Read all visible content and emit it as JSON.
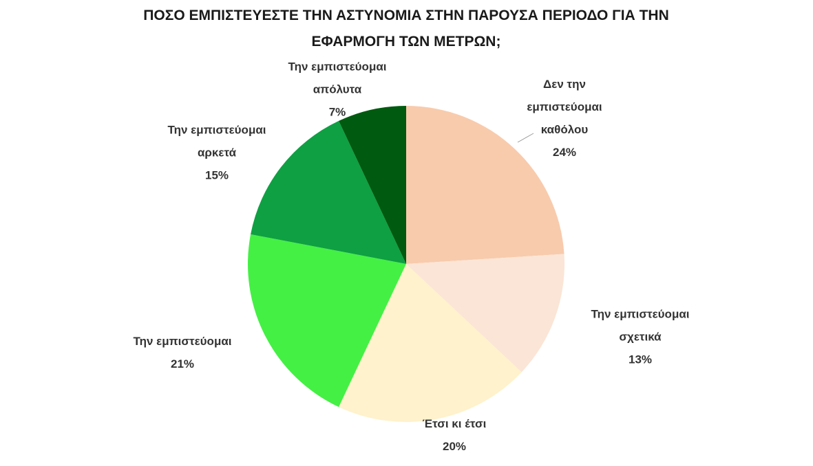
{
  "chart_data": {
    "type": "pie",
    "title": "ΠΟΣΟ ΕΜΠΙΣΤΕΥΕΣΤΕ ΤΗΝ ΑΣΤΥΝΟΜΙΑ ΣΤΗΝ ΠΑΡΟΥΣΑ ΠΕΡΙΟΔΟ ΓΙΑ ΤΗΝ ΕΦΑΡΜΟΓΗ ΤΩΝ ΜΕΤΡΩΝ;",
    "categories": [
      "Δεν την εμπιστεύομαι καθόλου",
      "Την εμπιστεύομαι σχετικά",
      "Έτσι κι έτσι",
      "Την εμπιστεύομαι",
      "Την εμπιστεύομαι αρκετά",
      "Την εμπιστεύομαι απόλυτα"
    ],
    "values": [
      24,
      13,
      20,
      21,
      15,
      7
    ],
    "value_labels": [
      "24%",
      "13%",
      "20%",
      "21%",
      "15%",
      "7%"
    ],
    "colors": [
      "#f8cbad",
      "#fbe5d6",
      "#fff2cc",
      "#44f044",
      "#0ea042",
      "#005a0f"
    ]
  }
}
